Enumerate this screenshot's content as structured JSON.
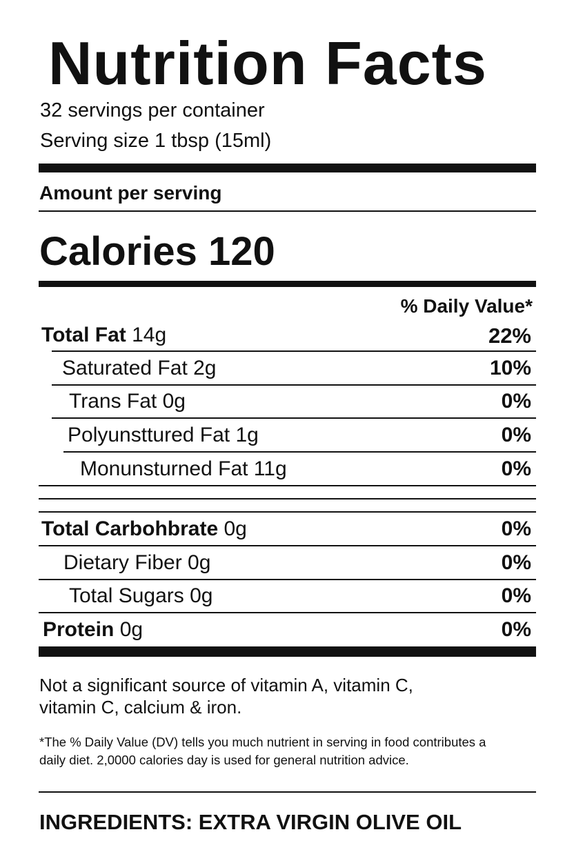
{
  "title": "Nutrition Facts",
  "servings_per_container": "32 servings per container",
  "serving_size": "Serving size 1 tbsp (15ml)",
  "amount_per_serving": "Amount per serving",
  "calories_label": "Calories 120",
  "daily_value_header": "% Daily Value*",
  "rows": [
    {
      "name": "Total Fat",
      "amount": " 14g",
      "dv": "22%"
    },
    {
      "name": "Saturated Fat 2g",
      "amount": "",
      "dv": "10%"
    },
    {
      "name": "Trans Fat 0g",
      "amount": "",
      "dv": "0%"
    },
    {
      "name": "Polyunsttured Fat 1g",
      "amount": "",
      "dv": "0%"
    },
    {
      "name": "Monunsturned Fat 11g",
      "amount": "",
      "dv": "0%"
    },
    {
      "name": "Total Carbohbrate",
      "amount": " 0g",
      "dv": "0%"
    },
    {
      "name": "Dietary Fiber 0g",
      "amount": "",
      "dv": "0%"
    },
    {
      "name": "Total Sugars 0g",
      "amount": "",
      "dv": "0%"
    },
    {
      "name": "Protein",
      "amount": " 0g",
      "dv": "0%"
    }
  ],
  "vitamin_note": [
    "Not a significant source of vitamin A, vitamin C,",
    "vitamin C, calcium & iron."
  ],
  "footnote": [
    "*The % Daily Value (DV) tells you much nutrient in serving in food contributes a",
    "daily diet. 2,0000 calories day is used for general nutrition advice."
  ],
  "ingredients": "INGREDIENTS: EXTRA VIRGIN OLIVE OIL"
}
